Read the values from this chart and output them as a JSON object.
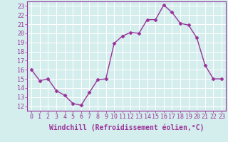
{
  "x": [
    0,
    1,
    2,
    3,
    4,
    5,
    6,
    7,
    8,
    9,
    10,
    11,
    12,
    13,
    14,
    15,
    16,
    17,
    18,
    19,
    20,
    21,
    22,
    23
  ],
  "y": [
    16,
    14.8,
    15,
    13.7,
    13.2,
    12.3,
    12.1,
    13.5,
    14.9,
    15,
    18.9,
    19.7,
    20.1,
    20.0,
    21.5,
    21.5,
    23.1,
    22.3,
    21.1,
    20.9,
    19.5,
    16.5,
    15.0,
    15.0
  ],
  "line_color": "#993399",
  "marker": "D",
  "markersize": 2.5,
  "linewidth": 1.0,
  "xlabel": "Windchill (Refroidissement éolien,°C)",
  "xlabel_fontsize": 7,
  "ylabel_ticks": [
    12,
    13,
    14,
    15,
    16,
    17,
    18,
    19,
    20,
    21,
    22,
    23
  ],
  "xlim": [
    -0.5,
    23.5
  ],
  "ylim": [
    11.5,
    23.5
  ],
  "background_color": "#d4eded",
  "grid_color": "#ffffff",
  "tick_fontsize": 6,
  "tick_color": "#993399",
  "label_color": "#993399",
  "spine_color": "#993399"
}
